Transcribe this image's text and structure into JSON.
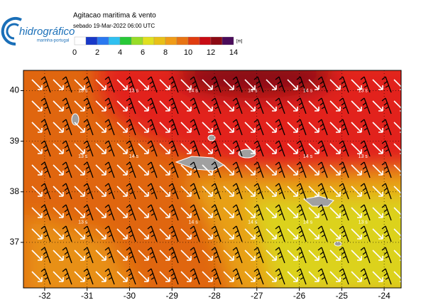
{
  "logo": {
    "name": "hidrográfico",
    "sub": "marinha-portugal"
  },
  "title": "Agitacao maritima & vento",
  "subtitle": "sebado 19-Mar-2022 06:00 UTC",
  "colorbar": {
    "ticks": [
      0,
      2,
      4,
      6,
      8,
      10,
      12,
      14
    ],
    "unit": "[m]",
    "colors": [
      "#ffffff",
      "#1838c8",
      "#2a78f0",
      "#30c0f0",
      "#28c838",
      "#98dc28",
      "#e0e020",
      "#e8c018",
      "#f09c18",
      "#e87414",
      "#e03c10",
      "#c80c14",
      "#8c0a14",
      "#4a0c5a"
    ]
  },
  "map": {
    "lon_range": [
      -32.5,
      -23.6
    ],
    "lat_range": [
      36.1,
      40.4
    ],
    "lon_ticks": [
      -32,
      -31,
      -30,
      -29,
      -28,
      -27,
      -26,
      -25,
      -24
    ],
    "lat_ticks": [
      37,
      38,
      39,
      40
    ],
    "period_labels": [
      {
        "label": "13 s",
        "lon": -31.1,
        "lat": 40.0
      },
      {
        "label": "13 s",
        "lon": -29.9,
        "lat": 40.0
      },
      {
        "label": "14 s",
        "lon": -28.5,
        "lat": 40.0
      },
      {
        "label": "14 s",
        "lon": -27.1,
        "lat": 40.0
      },
      {
        "label": "14 s",
        "lon": -25.8,
        "lat": 40.0
      },
      {
        "label": "13 s",
        "lon": -24.5,
        "lat": 40.0
      },
      {
        "label": "13 s",
        "lon": -31.1,
        "lat": 38.7
      },
      {
        "label": "14 s",
        "lon": -29.9,
        "lat": 38.7
      },
      {
        "label": "14 s",
        "lon": -25.8,
        "lat": 38.7
      },
      {
        "label": "13 s",
        "lon": -24.5,
        "lat": 38.7
      },
      {
        "label": "13 s",
        "lon": -31.1,
        "lat": 37.4
      },
      {
        "label": "14 s",
        "lon": -28.5,
        "lat": 37.4
      },
      {
        "label": "14 s",
        "lon": -27.1,
        "lat": 37.4
      },
      {
        "label": "14 s",
        "lon": -25.8,
        "lat": 37.4
      },
      {
        "label": "13 s",
        "lon": -24.5,
        "lat": 37.4
      }
    ]
  }
}
